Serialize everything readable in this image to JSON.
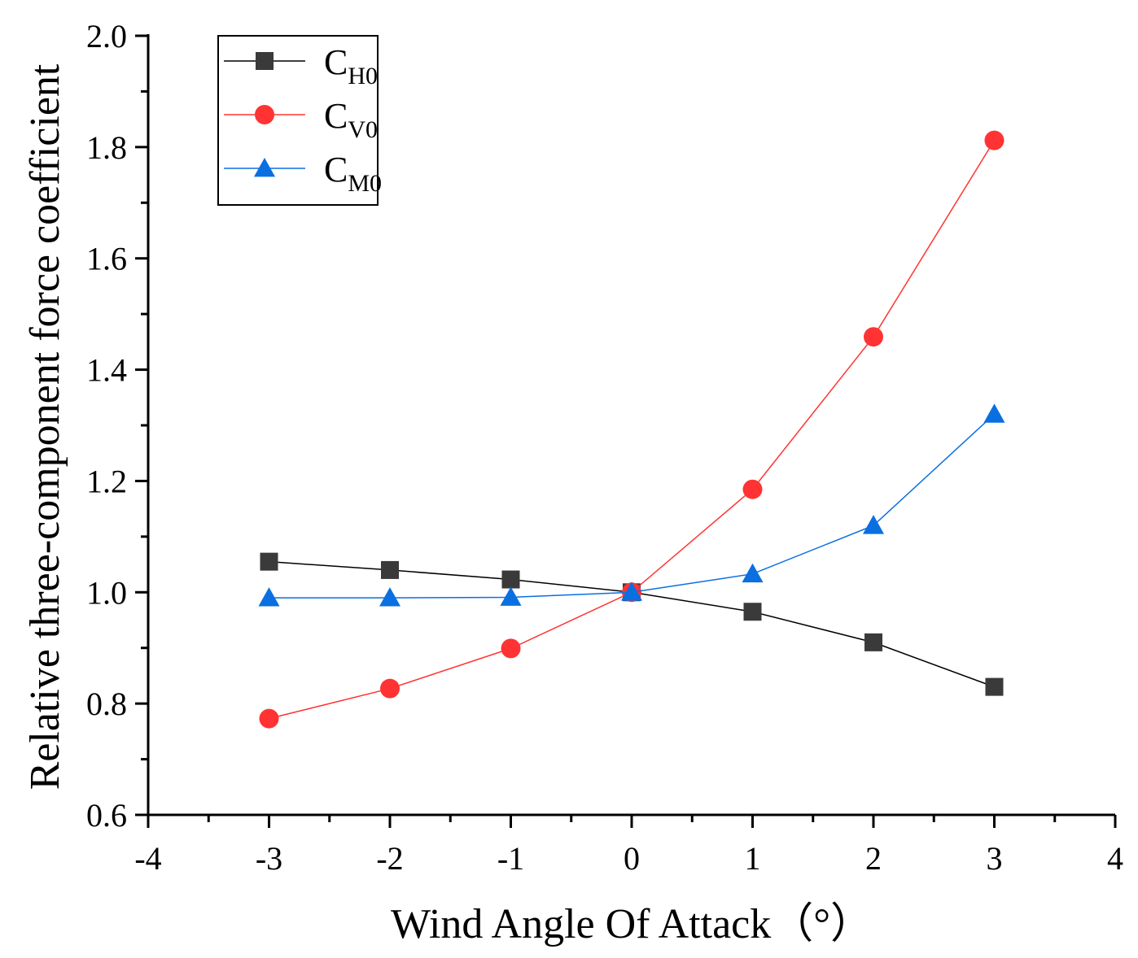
{
  "chart_data": {
    "type": "line",
    "title": "",
    "xlabel": "Wind Angle Of Attack（°）",
    "ylabel": "Relative three-component force coefficient",
    "xlim": [
      -4,
      4
    ],
    "ylim": [
      0.6,
      2.0
    ],
    "xticks": [
      -4,
      -3,
      -2,
      -1,
      0,
      1,
      2,
      3,
      4
    ],
    "xtick_labels": [
      "-4",
      "-3",
      "-2",
      "-1",
      "0",
      "1",
      "2",
      "3",
      "4"
    ],
    "yticks": [
      0.6,
      0.8,
      1.0,
      1.2,
      1.4,
      1.6,
      1.8,
      2.0
    ],
    "ytick_labels": [
      "0.6",
      "0.8",
      "1.0",
      "1.2",
      "1.4",
      "1.6",
      "1.8",
      "2.0"
    ],
    "grid": false,
    "legend_position": "top-left",
    "x": [
      -3,
      -2,
      -1,
      0,
      1,
      2,
      3
    ],
    "series": [
      {
        "name": "C",
        "subscript": "H0",
        "marker": "square",
        "color": "#3a3a3a",
        "line_color": "#000000",
        "values": [
          1.055,
          1.04,
          1.023,
          1.0,
          0.965,
          0.91,
          0.83
        ]
      },
      {
        "name": "C",
        "subscript": "V0",
        "marker": "circle",
        "color": "#ff3333",
        "line_color": "#ff3333",
        "values": [
          0.773,
          0.827,
          0.899,
          1.0,
          1.185,
          1.459,
          1.812
        ]
      },
      {
        "name": "C",
        "subscript": "M0",
        "marker": "triangle",
        "color": "#0a6fe0",
        "line_color": "#0a6fe0",
        "values": [
          0.99,
          0.99,
          0.991,
          1.0,
          1.033,
          1.12,
          1.32
        ]
      }
    ]
  }
}
